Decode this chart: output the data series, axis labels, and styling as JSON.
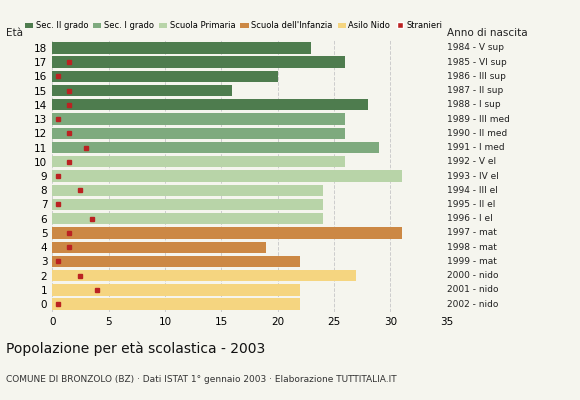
{
  "ages": [
    18,
    17,
    16,
    15,
    14,
    13,
    12,
    11,
    10,
    9,
    8,
    7,
    6,
    5,
    4,
    3,
    2,
    1,
    0
  ],
  "years": [
    "1984 - V sup",
    "1985 - VI sup",
    "1986 - III sup",
    "1987 - II sup",
    "1988 - I sup",
    "1989 - III med",
    "1990 - II med",
    "1991 - I med",
    "1992 - V el",
    "1993 - IV el",
    "1994 - III el",
    "1995 - II el",
    "1996 - I el",
    "1997 - mat",
    "1998 - mat",
    "1999 - mat",
    "2000 - nido",
    "2001 - nido",
    "2002 - nido"
  ],
  "bar_values": [
    23,
    26,
    20,
    16,
    28,
    26,
    26,
    29,
    26,
    31,
    24,
    24,
    24,
    31,
    19,
    22,
    27,
    22,
    22
  ],
  "bar_colors": [
    "#4e7c4e",
    "#4e7c4e",
    "#4e7c4e",
    "#4e7c4e",
    "#4e7c4e",
    "#7eaa7e",
    "#7eaa7e",
    "#7eaa7e",
    "#b8d4a8",
    "#b8d4a8",
    "#b8d4a8",
    "#b8d4a8",
    "#b8d4a8",
    "#cc8844",
    "#cc8844",
    "#cc8844",
    "#f5d580",
    "#f5d580",
    "#f5d580"
  ],
  "stranieri_x": [
    0.0,
    1.5,
    0.5,
    1.5,
    1.5,
    0.5,
    1.5,
    3.0,
    1.5,
    0.5,
    2.5,
    0.5,
    3.5,
    1.5,
    1.5,
    0.5,
    2.5,
    4.0,
    0.5
  ],
  "stranieri_show": [
    false,
    true,
    true,
    true,
    true,
    true,
    true,
    true,
    true,
    true,
    true,
    true,
    true,
    true,
    true,
    true,
    true,
    true,
    true
  ],
  "legend_labels": [
    "Sec. II grado",
    "Sec. I grado",
    "Scuola Primaria",
    "Scuola dell'Infanzia",
    "Asilo Nido",
    "Stranieri"
  ],
  "legend_colors": [
    "#4e7c4e",
    "#7eaa7e",
    "#b8d4a8",
    "#cc8844",
    "#f5d580",
    "#bb2222"
  ],
  "title": "Popolazione per età scolastica - 2003",
  "subtitle": "COMUNE DI BRONZOLO (BZ) · Dati ISTAT 1° gennaio 2003 · Elaborazione TUTTITALIA.IT",
  "eta_label": "Età",
  "anno_label": "Anno di nascita",
  "xlim": [
    0,
    35
  ],
  "xticks": [
    0,
    5,
    10,
    15,
    20,
    25,
    30,
    35
  ],
  "bg_color": "#f5f5ee",
  "bar_height": 0.8
}
